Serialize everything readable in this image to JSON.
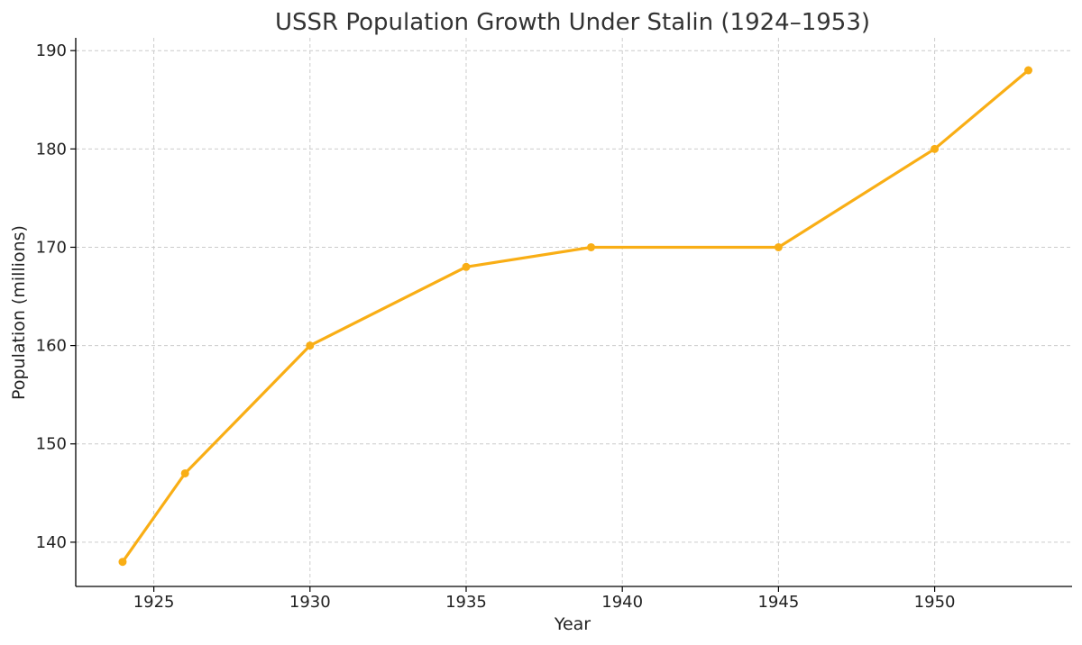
{
  "chart_data": {
    "type": "line",
    "title": "USSR Population Growth Under Stalin (1924–1953)",
    "xlabel": "Year",
    "ylabel": "Population (millions)",
    "x": [
      1924,
      1926,
      1930,
      1935,
      1939,
      1945,
      1950,
      1953
    ],
    "series": [
      {
        "values": [
          138,
          147,
          160,
          168,
          170,
          170,
          180,
          188
        ],
        "color": "#F9AE15",
        "marker": "circle"
      }
    ],
    "xticks": [
      1925,
      1930,
      1935,
      1940,
      1945,
      1950
    ],
    "yticks": [
      140,
      150,
      160,
      170,
      180,
      190
    ],
    "xlim": [
      1922.5,
      1954.4
    ],
    "ylim": [
      135.5,
      191.3
    ],
    "grid": true,
    "grid_style": "dashed",
    "legend": "none"
  }
}
